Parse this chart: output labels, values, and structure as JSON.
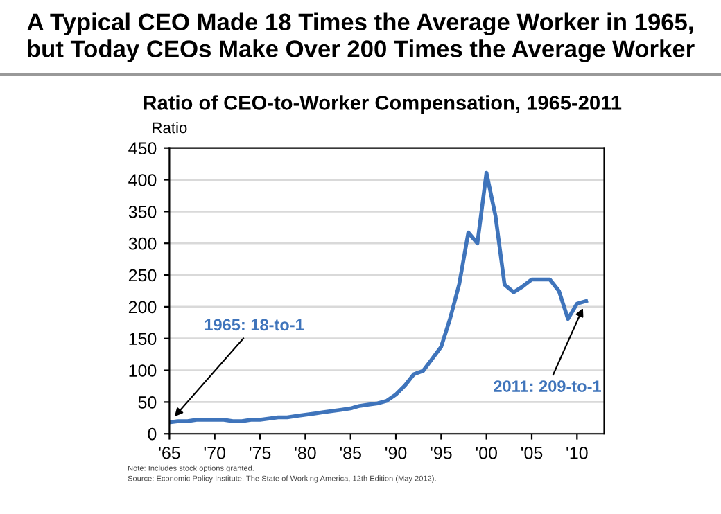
{
  "chart_data": {
    "type": "line",
    "title": "A Typical CEO Made 18 Times the Average Worker in 1965,\nbut Today CEOs Make Over 200 Times the Average Worker",
    "subtitle": "Ratio of CEO-to-Worker Compensation, 1965-2011",
    "ylabel": "Ratio",
    "x": [
      1965,
      1966,
      1967,
      1968,
      1969,
      1970,
      1971,
      1972,
      1973,
      1974,
      1975,
      1976,
      1977,
      1978,
      1979,
      1980,
      1981,
      1982,
      1983,
      1984,
      1985,
      1986,
      1987,
      1988,
      1989,
      1990,
      1991,
      1992,
      1993,
      1994,
      1995,
      1996,
      1997,
      1998,
      1999,
      2000,
      2001,
      2002,
      2003,
      2004,
      2005,
      2006,
      2007,
      2008,
      2009,
      2010,
      2011
    ],
    "series": [
      {
        "color": "#3f74bb",
        "values": [
          18,
          20,
          20,
          22,
          22,
          22,
          22,
          20,
          20,
          22,
          22,
          24,
          26,
          26,
          28,
          30,
          32,
          34,
          36,
          38,
          40,
          44,
          46,
          48,
          52,
          62,
          76,
          94,
          99,
          118,
          137,
          182,
          236,
          317,
          300,
          411,
          343,
          235,
          223,
          232,
          243,
          243,
          243,
          225,
          181,
          205,
          209
        ]
      }
    ],
    "xlim": [
      1965,
      2013
    ],
    "xticks": [
      {
        "value": 1965,
        "label": "'65"
      },
      {
        "value": 1970,
        "label": "'70"
      },
      {
        "value": 1975,
        "label": "'75"
      },
      {
        "value": 1980,
        "label": "'80"
      },
      {
        "value": 1985,
        "label": "'85"
      },
      {
        "value": 1990,
        "label": "'90"
      },
      {
        "value": 1995,
        "label": "'95"
      },
      {
        "value": 2000,
        "label": "'00"
      },
      {
        "value": 2005,
        "label": "'05"
      },
      {
        "value": 2010,
        "label": "'10"
      }
    ],
    "ylim": [
      0,
      450
    ],
    "yticks": [
      0,
      50,
      100,
      150,
      200,
      250,
      300,
      350,
      400,
      450
    ],
    "grid": "y",
    "marker": "none",
    "line_style": "solid",
    "annotations": [
      {
        "text": "1965: 18-to-1",
        "x": 1965,
        "y": 18
      },
      {
        "text": "2011: 209-to-1",
        "x": 2011,
        "y": 209
      },
      "Note: Includes stock options granted.",
      "Source: Economic Policy Institute, The State of Working America, 12th Edition (May 2012)."
    ]
  }
}
